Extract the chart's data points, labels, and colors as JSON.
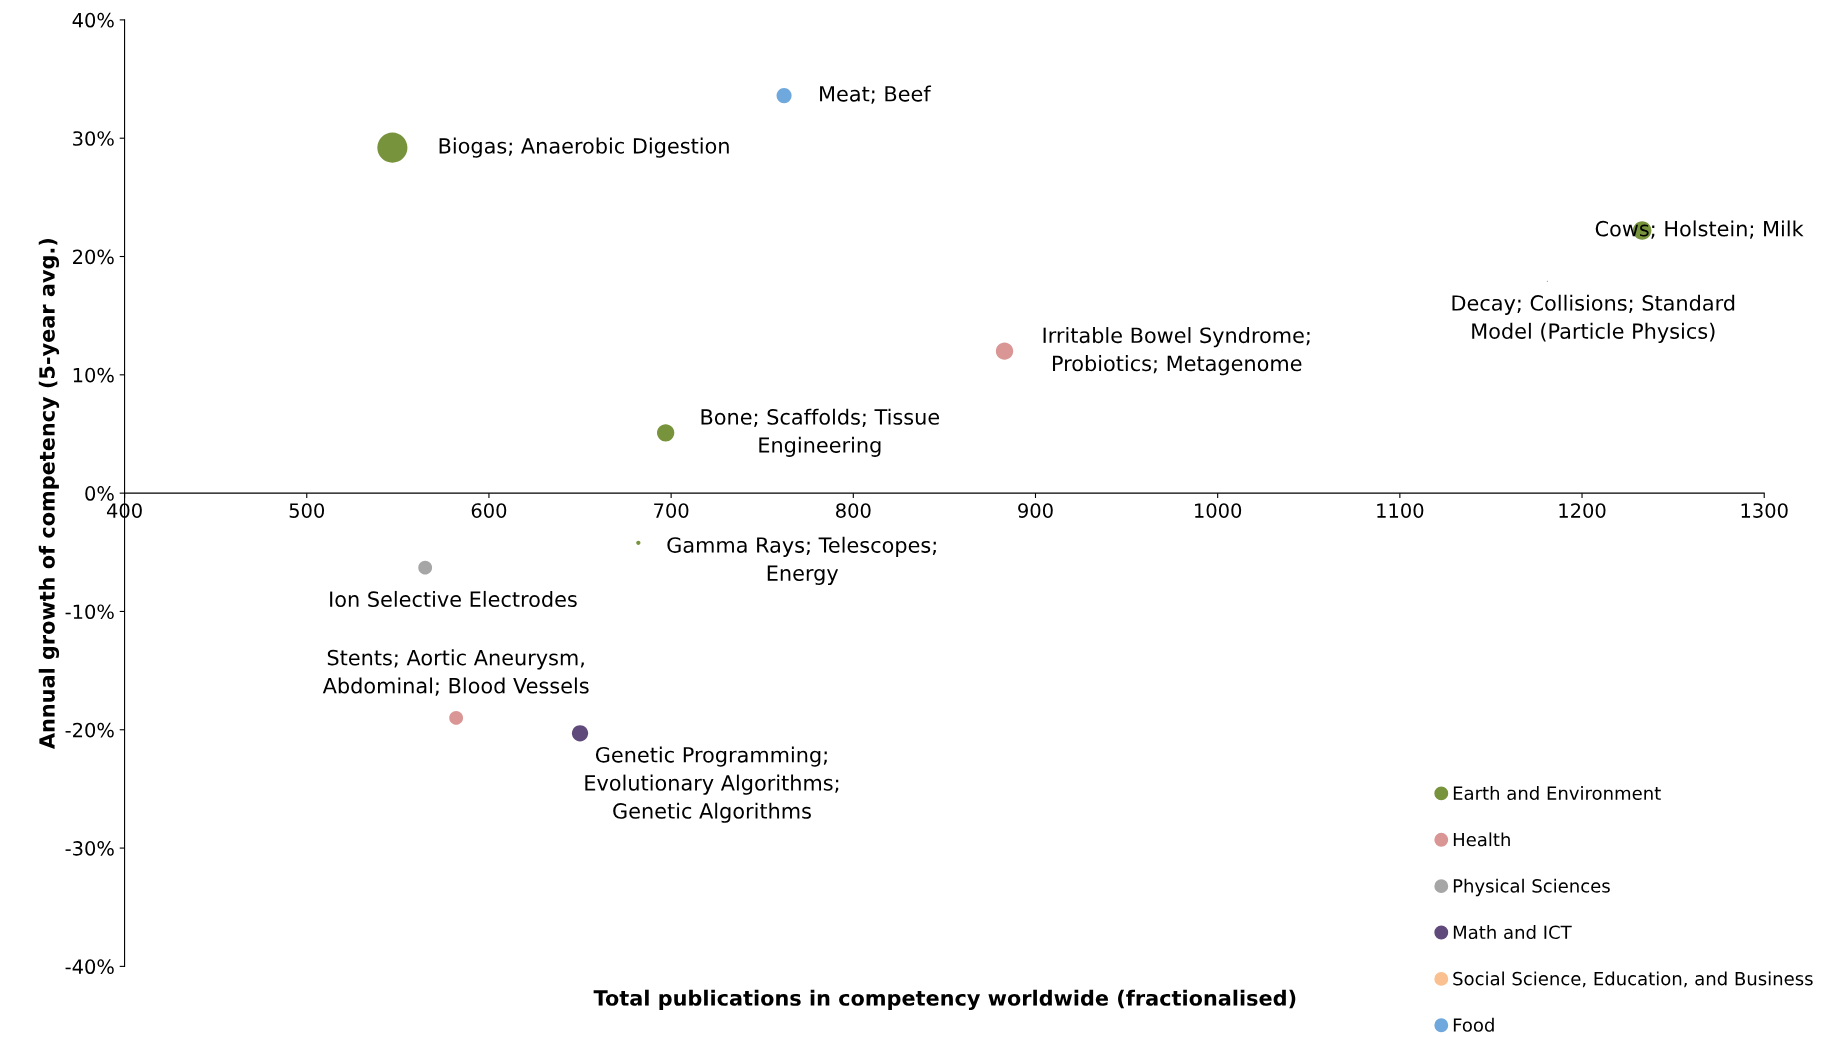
{
  "chart_data": {
    "type": "bubble",
    "xlabel": "Total publications in competency worldwide (fractionalised)",
    "ylabel": "Annual growth of competency (5-year avg.)",
    "xlim": [
      400,
      1300
    ],
    "xticks": [
      400,
      500,
      600,
      700,
      800,
      900,
      1000,
      1100,
      1200,
      1300
    ],
    "ylim": [
      -40,
      40
    ],
    "yticks": [
      {
        "value": -40,
        "label": "-40%"
      },
      {
        "value": -30,
        "label": "-30%"
      },
      {
        "value": -20,
        "label": "-20%"
      },
      {
        "value": -10,
        "label": "-10%"
      },
      {
        "value": 0,
        "label": "0%"
      },
      {
        "value": 10,
        "label": "10%"
      },
      {
        "value": 20,
        "label": "20%"
      },
      {
        "value": 30,
        "label": "30%"
      },
      {
        "value": 40,
        "label": "40%"
      }
    ],
    "grid": false,
    "legend": "bottom right",
    "series": [
      {
        "name": "Earth and Environment",
        "color": "#77933c",
        "x": [
          547,
          1233,
          697,
          682
        ],
        "values": [
          29.2,
          22.2,
          5.1,
          -4.2
        ],
        "sizes": [
          1,
          0.38,
          0.33,
          0.02
        ]
      },
      {
        "name": "Health",
        "color": "#d99694",
        "x": [
          883,
          582
        ],
        "values": [
          12.0,
          -19.0
        ],
        "sizes": [
          0.33,
          0.21
        ]
      },
      {
        "name": "Physical Sciences",
        "color": "#a6a6a6",
        "x": [
          565,
          1181
        ],
        "values": [
          -6.3,
          17.9
        ],
        "sizes": [
          0.21,
          0.002
        ]
      },
      {
        "name": "Math and ICT",
        "color": "#604a7b",
        "x": [
          650
        ],
        "values": [
          -20.3
        ],
        "sizes": [
          0.29
        ]
      },
      {
        "name": "Social Science, Education, and Business",
        "color": "#fac090"
      },
      {
        "name": "Food",
        "color": "#6fa8dc",
        "x": [
          762
        ],
        "values": [
          33.6
        ],
        "sizes": [
          0.25
        ]
      }
    ],
    "annotations": [
      {
        "text": "Biogas; Anaerobic Digestion",
        "x": 547,
        "y": 29.2
      },
      {
        "text": "Meat; Beef",
        "x": 762,
        "y": 33.6
      },
      {
        "text": "Cows; Holstein; Milk",
        "x": 1233,
        "y": 22.2
      },
      {
        "text": "Decay; Collisions; Standard\nModel (Particle Physics)",
        "x": 1181,
        "y": 17.9
      },
      {
        "text": "Irritable Bowel Syndrome;\nProbiotics; Metagenome",
        "x": 883,
        "y": 12.0
      },
      {
        "text": "Bone; Scaffolds; Tissue\nEngineering",
        "x": 697,
        "y": 5.1
      },
      {
        "text": "Gamma Rays; Telescopes;\nEnergy",
        "x": 682,
        "y": -4.2
      },
      {
        "text": "Ion Selective Electrodes",
        "x": 565,
        "y": -6.3
      },
      {
        "text": "Stents; Aortic Aneurysm,\nAbdominal; Blood Vessels",
        "x": 582,
        "y": -19.0
      },
      {
        "text": "Genetic Programming;\nEvolutionary Algorithms;\nGenetic Algorithms",
        "x": 650,
        "y": -20.3
      }
    ]
  }
}
